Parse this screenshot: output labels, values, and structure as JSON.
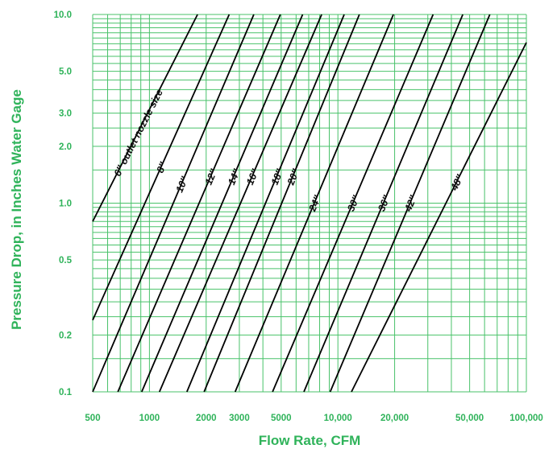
{
  "colors": {
    "grid": "#49c26a",
    "text": "#2fb35a",
    "line": "#000000"
  },
  "chart_data": {
    "type": "line",
    "title": "",
    "xlabel": "Flow Rate, CFM",
    "ylabel": "Pressure Drop, in Inches Water Gage",
    "xscale": "log",
    "yscale": "log",
    "xlim": [
      500,
      100000
    ],
    "ylim": [
      0.1,
      10
    ],
    "grid": true,
    "x_tick_labels": [
      {
        "value": 500,
        "label": "500"
      },
      {
        "value": 1000,
        "label": "1000"
      },
      {
        "value": 2000,
        "label": "2000"
      },
      {
        "value": 3000,
        "label": "3000"
      },
      {
        "value": 5000,
        "label": "5000"
      },
      {
        "value": 10000,
        "label": "10,000"
      },
      {
        "value": 20000,
        "label": "20,000"
      },
      {
        "value": 50000,
        "label": "50,000"
      },
      {
        "value": 100000,
        "label": "100,000"
      }
    ],
    "y_tick_labels": [
      {
        "value": 0.1,
        "label": "0.1"
      },
      {
        "value": 0.2,
        "label": "0.2"
      },
      {
        "value": 0.5,
        "label": "0.5"
      },
      {
        "value": 1.0,
        "label": "1.0"
      },
      {
        "value": 2.0,
        "label": "2.0"
      },
      {
        "value": 3.0,
        "label": "3.0"
      },
      {
        "value": 5.0,
        "label": "5.0"
      },
      {
        "value": 10.0,
        "label": "10.0"
      }
    ],
    "series": [
      {
        "name": "6″ outlet nozzle size",
        "x": [
          500,
          1800
        ],
        "y": [
          0.8,
          10
        ]
      },
      {
        "name": "8″",
        "x": [
          500,
          2650
        ],
        "y": [
          0.24,
          10
        ]
      },
      {
        "name": "10″",
        "x": [
          500,
          3580
        ],
        "y": [
          0.1,
          10
        ]
      },
      {
        "name": "12″",
        "x": [
          680,
          4950
        ],
        "y": [
          0.1,
          10
        ]
      },
      {
        "name": "14″",
        "x": [
          910,
          6500
        ],
        "y": [
          0.1,
          10
        ]
      },
      {
        "name": "16″",
        "x": [
          1130,
          8200
        ],
        "y": [
          0.1,
          10
        ]
      },
      {
        "name": "18″",
        "x": [
          1580,
          10800
        ],
        "y": [
          0.1,
          10
        ]
      },
      {
        "name": "20″",
        "x": [
          1950,
          13000
        ],
        "y": [
          0.1,
          10
        ]
      },
      {
        "name": "24″",
        "x": [
          2850,
          19700
        ],
        "y": [
          0.1,
          10
        ]
      },
      {
        "name": "30″",
        "x": [
          4500,
          32000
        ],
        "y": [
          0.1,
          10
        ]
      },
      {
        "name": "36″",
        "x": [
          6600,
          46000
        ],
        "y": [
          0.1,
          10
        ]
      },
      {
        "name": "42″",
        "x": [
          9100,
          64000
        ],
        "y": [
          0.1,
          10
        ]
      },
      {
        "name": "48″",
        "x": [
          11800,
          100000
        ],
        "y": [
          0.1,
          7.1
        ]
      }
    ]
  }
}
